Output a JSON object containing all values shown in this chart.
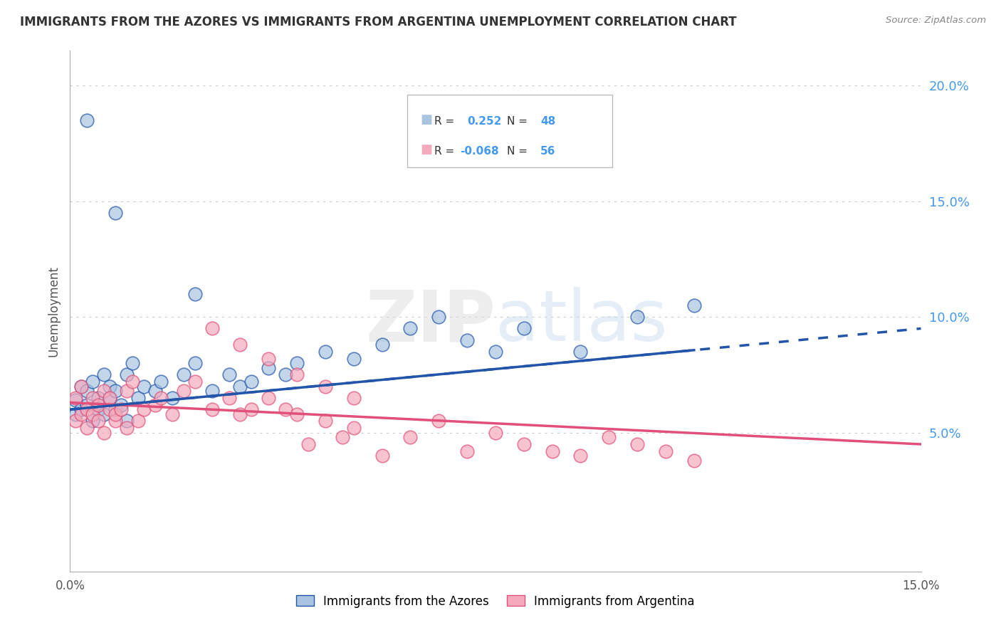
{
  "title": "IMMIGRANTS FROM THE AZORES VS IMMIGRANTS FROM ARGENTINA UNEMPLOYMENT CORRELATION CHART",
  "source": "Source: ZipAtlas.com",
  "ylabel": "Unemployment",
  "legend_azores": "Immigrants from the Azores",
  "legend_argentina": "Immigrants from Argentina",
  "azores_r": "0.252",
  "azores_n": "48",
  "argentina_r": "-0.068",
  "argentina_n": "56",
  "azores_color": "#A8C4E0",
  "argentina_color": "#F4AABC",
  "azores_line_color": "#2255AA",
  "argentina_line_color": "#E0507A",
  "grid_color": "#CCCCCC",
  "right_axis_color": "#4499EE",
  "watermark_color": "#DDDDDD",
  "xmin": 0.0,
  "xmax": 0.15,
  "ymin": -0.01,
  "ymax": 0.215,
  "yticks_right": [
    0.05,
    0.1,
    0.15,
    0.2
  ],
  "ytick_labels_right": [
    "5.0%",
    "10.0%",
    "15.0%",
    "20.0%"
  ],
  "azores_x": [
    0.001,
    0.001,
    0.002,
    0.002,
    0.003,
    0.003,
    0.004,
    0.004,
    0.005,
    0.005,
    0.006,
    0.006,
    0.007,
    0.007,
    0.008,
    0.008,
    0.009,
    0.01,
    0.01,
    0.011,
    0.012,
    0.013,
    0.015,
    0.016,
    0.018,
    0.02,
    0.022,
    0.025,
    0.028,
    0.03,
    0.032,
    0.035,
    0.038,
    0.04,
    0.045,
    0.05,
    0.055,
    0.06,
    0.065,
    0.07,
    0.075,
    0.08,
    0.09,
    0.1,
    0.11,
    0.022,
    0.008,
    0.003
  ],
  "azores_y": [
    0.064,
    0.058,
    0.07,
    0.06,
    0.062,
    0.068,
    0.055,
    0.072,
    0.06,
    0.065,
    0.075,
    0.058,
    0.065,
    0.07,
    0.06,
    0.068,
    0.062,
    0.075,
    0.055,
    0.08,
    0.065,
    0.07,
    0.068,
    0.072,
    0.065,
    0.075,
    0.08,
    0.068,
    0.075,
    0.07,
    0.072,
    0.078,
    0.075,
    0.08,
    0.085,
    0.082,
    0.088,
    0.095,
    0.1,
    0.09,
    0.085,
    0.095,
    0.085,
    0.1,
    0.105,
    0.11,
    0.145,
    0.185
  ],
  "argentina_x": [
    0.001,
    0.001,
    0.002,
    0.002,
    0.003,
    0.003,
    0.004,
    0.004,
    0.005,
    0.005,
    0.006,
    0.006,
    0.007,
    0.007,
    0.008,
    0.008,
    0.009,
    0.01,
    0.01,
    0.011,
    0.012,
    0.013,
    0.015,
    0.016,
    0.018,
    0.02,
    0.022,
    0.025,
    0.028,
    0.03,
    0.032,
    0.035,
    0.038,
    0.04,
    0.042,
    0.045,
    0.048,
    0.05,
    0.055,
    0.06,
    0.065,
    0.07,
    0.075,
    0.08,
    0.085,
    0.09,
    0.095,
    0.1,
    0.105,
    0.11,
    0.025,
    0.03,
    0.035,
    0.04,
    0.045,
    0.05
  ],
  "argentina_y": [
    0.065,
    0.055,
    0.07,
    0.058,
    0.06,
    0.052,
    0.065,
    0.058,
    0.055,
    0.062,
    0.068,
    0.05,
    0.06,
    0.065,
    0.055,
    0.058,
    0.06,
    0.068,
    0.052,
    0.072,
    0.055,
    0.06,
    0.062,
    0.065,
    0.058,
    0.068,
    0.072,
    0.06,
    0.065,
    0.058,
    0.06,
    0.065,
    0.06,
    0.058,
    0.045,
    0.055,
    0.048,
    0.052,
    0.04,
    0.048,
    0.055,
    0.042,
    0.05,
    0.045,
    0.042,
    0.04,
    0.048,
    0.045,
    0.042,
    0.038,
    0.095,
    0.088,
    0.082,
    0.075,
    0.07,
    0.065
  ],
  "az_trend_x0": 0.0,
  "az_trend_y0": 0.06,
  "az_trend_x1": 0.15,
  "az_trend_y1": 0.095,
  "ar_trend_x0": 0.0,
  "ar_trend_y0": 0.063,
  "ar_trend_x1": 0.15,
  "ar_trend_y1": 0.045
}
